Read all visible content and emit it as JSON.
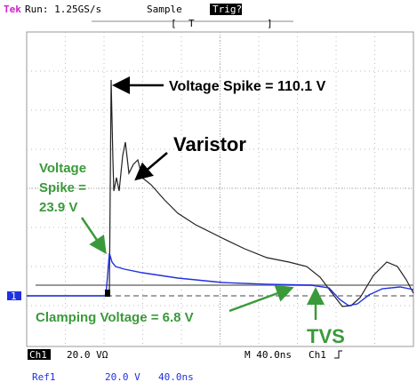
{
  "header": {
    "brand": "Tek",
    "run": "Run: 1.25GS/s",
    "mode": "Sample",
    "trigger": "Trig?",
    "trigger_marker": "T"
  },
  "annotations": {
    "varistor_spike": "Voltage Spike = 110.1 V",
    "varistor": "Varistor",
    "tvs_spike": [
      "Voltage",
      "Spike =",
      "23.9 V"
    ],
    "clamping": "Clamping Voltage = 6.8 V",
    "tvs": "TVS"
  },
  "markers": {
    "channel": "1"
  },
  "status": {
    "channel": "Ch1",
    "scale": "20.0 VΩ",
    "timebase": "M 40.0ns",
    "trigger_source": "Ch1",
    "ref": "Ref1",
    "ref_scale": "20.0 V",
    "ref_time": "40.0ns"
  }
}
